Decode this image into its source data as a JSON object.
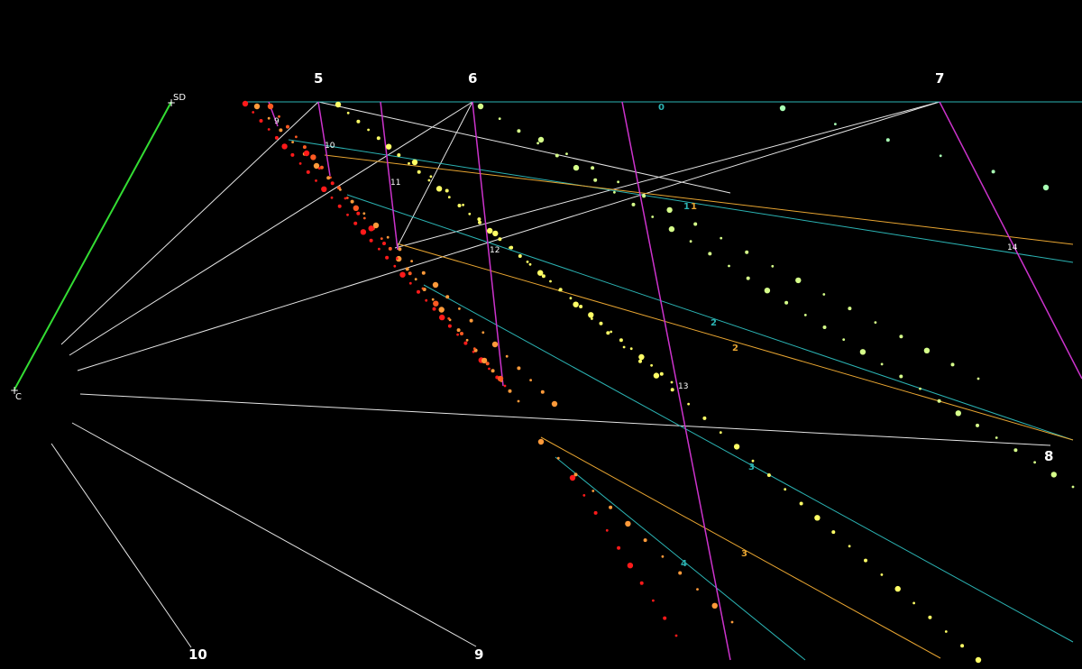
{
  "colors": {
    "background": "#000000",
    "white_line": "#e6e6e6",
    "green_line": "#33dd33",
    "cyan_line": "#2bb3b3",
    "orange_line": "#e8a531",
    "magenta_line": "#cc33cc",
    "dots": [
      "#ff1a1a",
      "#ff5a22",
      "#ff9a3a",
      "#ffd24a",
      "#ffff66",
      "#d6ff8a",
      "#a8ffb4"
    ]
  },
  "points": {
    "sd": "SD",
    "c": "C"
  },
  "vanishing_labels": {
    "v5": "5",
    "v6": "6",
    "v7": "7",
    "v8": "8",
    "v9": "9",
    "v10": "10"
  },
  "magenta_labels": {
    "m9": "9",
    "m10": "10",
    "m11": "11",
    "m12": "12",
    "m13": "13",
    "m14": "14"
  },
  "cyan_labels": {
    "c0": "0",
    "c1": "1",
    "c2": "2",
    "c3": "3",
    "c4": "4"
  },
  "orange_labels": {
    "o1": "1",
    "o2": "2",
    "o3": "3"
  }
}
